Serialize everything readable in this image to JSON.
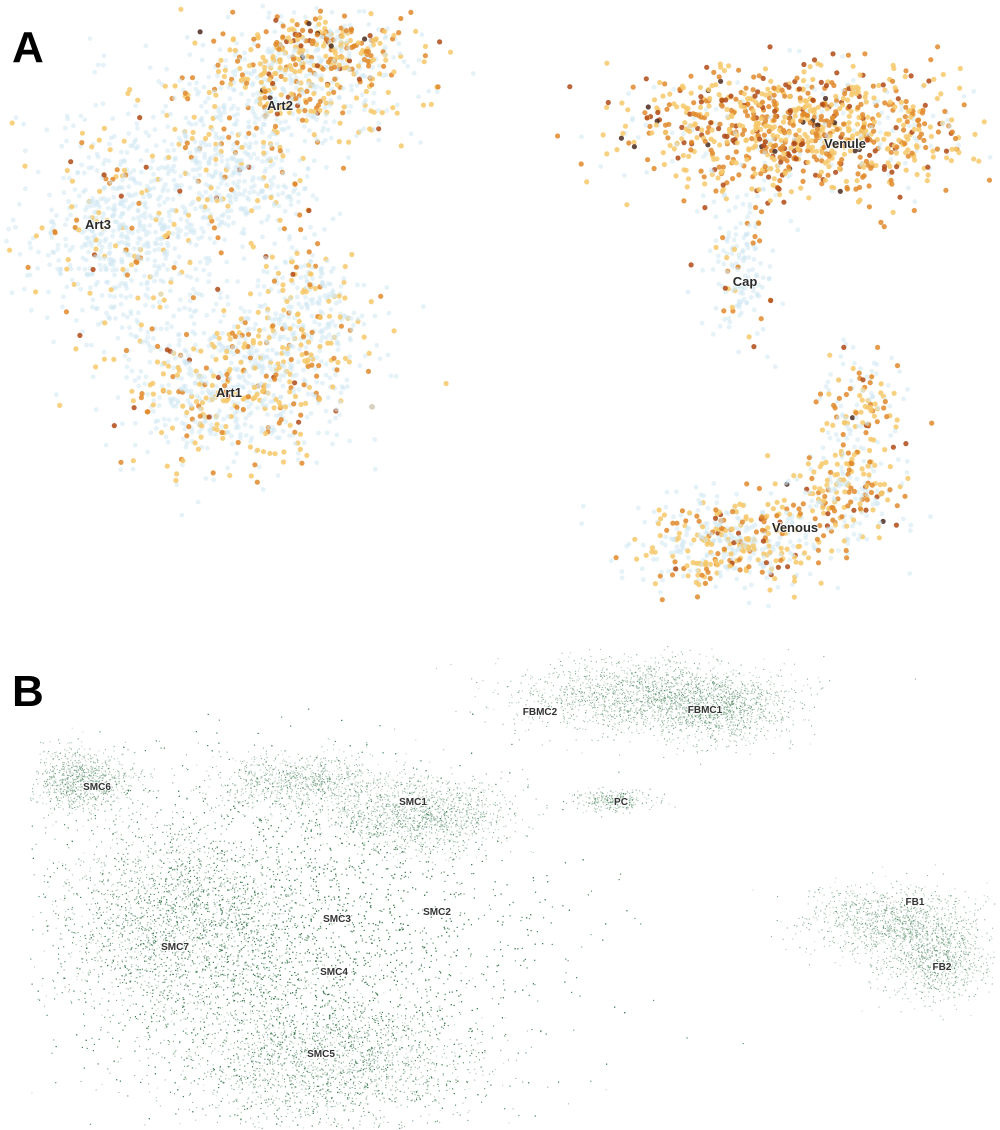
{
  "panels": [
    {
      "letter": "A"
    },
    {
      "letter": "B"
    }
  ],
  "colors": {
    "low": "#cfe8f3",
    "mid": "#f6c86a",
    "high": "#e08a2c",
    "top": "#b04a16",
    "max": "#4a2a20",
    "green": "#3c7a50"
  },
  "chart_data": [
    {
      "type": "scatter",
      "title": "",
      "xlabel": "",
      "ylabel": "",
      "color_scale": [
        "#cfe8f3",
        "#f6c86a",
        "#e08a2c",
        "#b04a16",
        "#4a2a20"
      ],
      "clusters": [
        {
          "label": "Art2",
          "expression": "low-mid"
        },
        {
          "label": "Art3",
          "expression": "low"
        },
        {
          "label": "Art1",
          "expression": "low-mid"
        },
        {
          "label": "Venule",
          "expression": "high"
        },
        {
          "label": "Cap",
          "expression": "low"
        },
        {
          "label": "Venous",
          "expression": "mid"
        }
      ]
    },
    {
      "type": "scatter",
      "title": "",
      "xlabel": "",
      "ylabel": "",
      "point_color": "#3c7a50",
      "clusters": [
        {
          "label": "FBMC2"
        },
        {
          "label": "FBMC1"
        },
        {
          "label": "SMC6"
        },
        {
          "label": "SMC1"
        },
        {
          "label": "PC"
        },
        {
          "label": "SMC3"
        },
        {
          "label": "SMC2"
        },
        {
          "label": "SMC7"
        },
        {
          "label": "SMC4"
        },
        {
          "label": "SMC5"
        },
        {
          "label": "FB1"
        },
        {
          "label": "FB2"
        }
      ]
    }
  ]
}
